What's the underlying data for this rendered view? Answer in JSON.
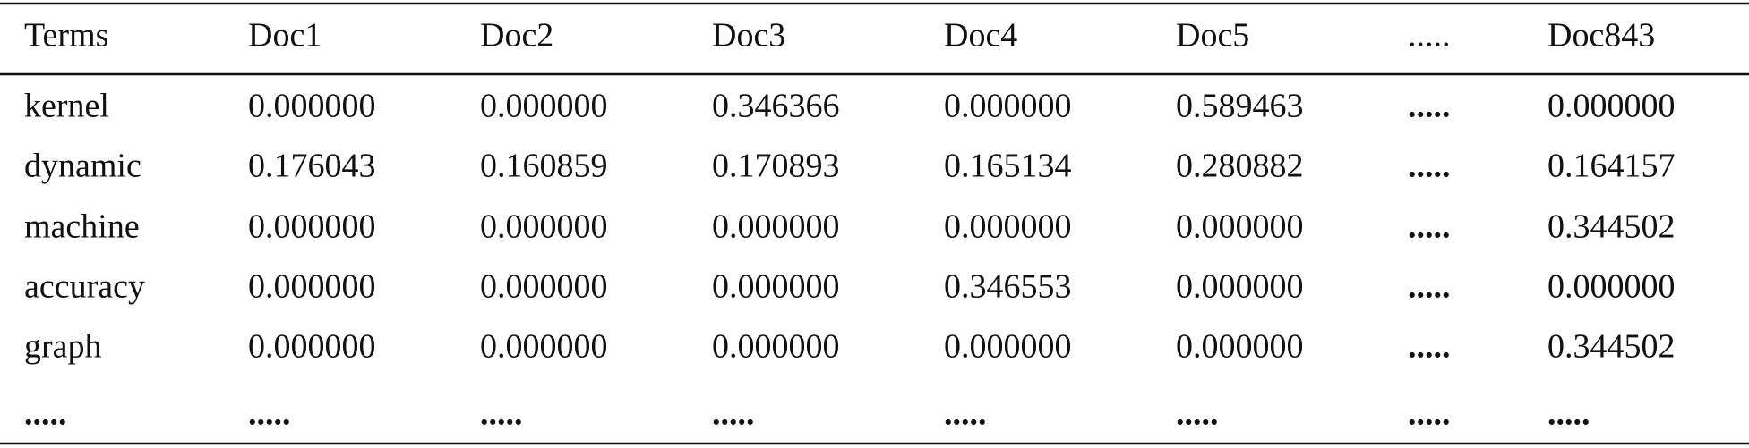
{
  "table": {
    "header": [
      "Terms",
      "Doc1",
      "Doc2",
      "Doc3",
      "Doc4",
      "Doc5",
      ".....",
      "Doc843"
    ],
    "rows": [
      [
        "kernel",
        "0.000000",
        "0.000000",
        "0.346366",
        "0.000000",
        "0.589463",
        ".....",
        "0.000000"
      ],
      [
        "dynamic",
        "0.176043",
        "0.160859",
        "0.170893",
        "0.165134",
        "0.280882",
        ".....",
        "0.164157"
      ],
      [
        "machine",
        "0.000000",
        "0.000000",
        "0.000000",
        "0.000000",
        "0.000000",
        ".....",
        "0.344502"
      ],
      [
        "accuracy",
        "0.000000",
        "0.000000",
        "0.000000",
        "0.346553",
        "0.000000",
        ".....",
        "0.000000"
      ],
      [
        "graph",
        "0.000000",
        "0.000000",
        "0.000000",
        "0.000000",
        "0.000000",
        ".....",
        "0.344502"
      ],
      [
        ".....",
        ".....",
        ".....",
        ".....",
        ".....",
        ".....",
        ".....",
        "....."
      ]
    ]
  }
}
